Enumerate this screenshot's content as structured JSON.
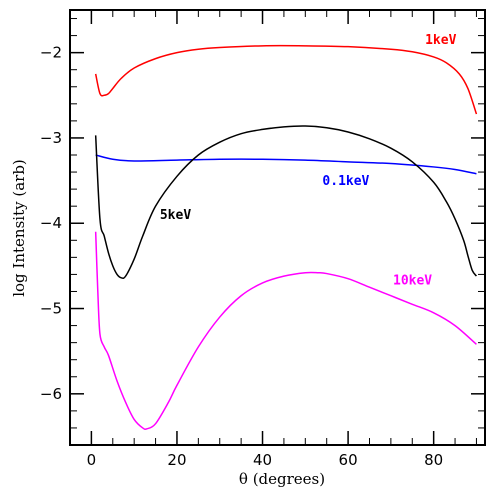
{
  "chart_data": {
    "type": "line",
    "title": "",
    "xlabel": "θ (degrees)",
    "ylabel": "log Intensity (arb)",
    "xlim": [
      -5,
      92
    ],
    "ylim": [
      -6.6,
      -1.5
    ],
    "xticks": [
      0,
      20,
      40,
      60,
      80
    ],
    "yticks": [
      -2,
      -3,
      -4,
      -5,
      -6
    ],
    "grid": false,
    "series": [
      {
        "name": "1keV",
        "color": "#ff0000",
        "x": [
          1,
          2,
          3,
          4,
          5,
          7,
          10,
          15,
          20,
          25,
          30,
          40,
          50,
          60,
          70,
          75,
          80,
          83,
          86,
          88,
          90
        ],
        "y": [
          -2.25,
          -2.48,
          -2.5,
          -2.48,
          -2.42,
          -2.3,
          -2.18,
          -2.07,
          -2.0,
          -1.96,
          -1.94,
          -1.92,
          -1.92,
          -1.93,
          -1.96,
          -1.99,
          -2.05,
          -2.12,
          -2.25,
          -2.42,
          -2.72
        ]
      },
      {
        "name": "0.1keV",
        "color": "#0000ff",
        "x": [
          1,
          5,
          10,
          20,
          30,
          40,
          50,
          60,
          70,
          80,
          85,
          90
        ],
        "y": [
          -3.2,
          -3.25,
          -3.27,
          -3.26,
          -3.25,
          -3.25,
          -3.26,
          -3.28,
          -3.3,
          -3.34,
          -3.37,
          -3.42
        ]
      },
      {
        "name": "5keV",
        "color": "#000000",
        "x": [
          1,
          2,
          3,
          4,
          5,
          6,
          7,
          8,
          10,
          12,
          15,
          20,
          25,
          30,
          35,
          40,
          45,
          50,
          55,
          60,
          65,
          70,
          75,
          80,
          83,
          85,
          87,
          88,
          89,
          90
        ],
        "y": [
          -2.97,
          -3.95,
          -4.15,
          -4.35,
          -4.5,
          -4.6,
          -4.64,
          -4.62,
          -4.42,
          -4.15,
          -3.8,
          -3.45,
          -3.2,
          -3.05,
          -2.95,
          -2.9,
          -2.87,
          -2.86,
          -2.88,
          -2.93,
          -3.01,
          -3.12,
          -3.28,
          -3.52,
          -3.75,
          -3.95,
          -4.2,
          -4.38,
          -4.55,
          -4.62
        ]
      },
      {
        "name": "10keV",
        "color": "#ff00ff",
        "x": [
          1,
          1.5,
          2,
          3,
          4,
          6,
          8,
          10,
          12,
          13,
          15,
          18,
          20,
          25,
          30,
          35,
          40,
          45,
          50,
          53,
          55,
          60,
          65,
          70,
          75,
          80,
          85,
          90
        ],
        "y": [
          -4.1,
          -4.8,
          -5.3,
          -5.45,
          -5.55,
          -5.85,
          -6.1,
          -6.3,
          -6.4,
          -6.41,
          -6.35,
          -6.1,
          -5.9,
          -5.45,
          -5.1,
          -4.85,
          -4.7,
          -4.62,
          -4.58,
          -4.58,
          -4.59,
          -4.65,
          -4.75,
          -4.85,
          -4.95,
          -5.05,
          -5.2,
          -5.42
        ]
      }
    ],
    "annotations": [
      {
        "text": "1keV",
        "series": "1keV",
        "x": 78,
        "y": -1.9,
        "color": "#ff0000"
      },
      {
        "text": "0.1keV",
        "series": "0.1keV",
        "x": 54,
        "y": -3.55,
        "color": "#0000ff"
      },
      {
        "text": "5keV",
        "series": "5keV",
        "x": 16,
        "y": -3.95,
        "color": "#000000"
      },
      {
        "text": "10keV",
        "series": "10keV",
        "x": 70.5,
        "y": -4.72,
        "color": "#ff00ff"
      }
    ]
  }
}
